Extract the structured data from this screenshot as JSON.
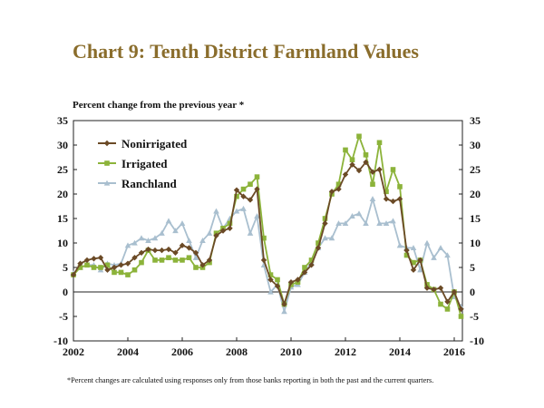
{
  "chart_data": {
    "type": "line",
    "title": "Chart 9: Tenth District Farmland Values",
    "ylabel": "Percent change from the previous year *",
    "xlabel": "",
    "xlim": [
      2002,
      2016.3
    ],
    "ylim": [
      -10,
      35
    ],
    "yticks": [
      35,
      30,
      25,
      20,
      15,
      10,
      5,
      0,
      -5,
      -10
    ],
    "xticks": [
      "2002",
      "2004",
      "2006",
      "2008",
      "2010",
      "2012",
      "2014",
      "2016"
    ],
    "legend_position": "top-left",
    "footnote": "*Percent changes are calculated using responses only from those banks reporting in both the past and the current quarters.",
    "colors": {
      "Nonirrigated": "#6b4a26",
      "Irrigated": "#8cb33a",
      "Ranchland": "#a9bfcf"
    },
    "series": [
      {
        "name": "Nonirrigated",
        "color": "#6b4a26",
        "marker": "diamond",
        "x": [
          2002.0,
          2002.25,
          2002.5,
          2002.75,
          2003.0,
          2003.25,
          2003.5,
          2003.75,
          2004.0,
          2004.25,
          2004.5,
          2004.75,
          2005.0,
          2005.25,
          2005.5,
          2005.75,
          2006.0,
          2006.25,
          2006.5,
          2006.75,
          2007.0,
          2007.25,
          2007.5,
          2007.75,
          2008.0,
          2008.25,
          2008.5,
          2008.75,
          2009.0,
          2009.25,
          2009.5,
          2009.75,
          2010.0,
          2010.25,
          2010.5,
          2010.75,
          2011.0,
          2011.25,
          2011.5,
          2011.75,
          2012.0,
          2012.25,
          2012.5,
          2012.75,
          2013.0,
          2013.25,
          2013.5,
          2013.75,
          2014.0,
          2014.25,
          2014.5,
          2014.75,
          2015.0,
          2015.25,
          2015.5,
          2015.75,
          2016.0,
          2016.25
        ],
        "values": [
          3.5,
          5.8,
          6.5,
          6.8,
          7.0,
          4.5,
          5.0,
          5.5,
          5.8,
          7.0,
          8.0,
          8.7,
          8.5,
          8.5,
          8.7,
          8.0,
          9.5,
          9.0,
          8.0,
          5.5,
          6.5,
          11.5,
          12.5,
          13.0,
          20.8,
          19.5,
          18.8,
          21.0,
          6.5,
          2.5,
          1.2,
          -2.5,
          2.0,
          2.5,
          4.0,
          5.5,
          9.0,
          14.0,
          20.5,
          21.0,
          24.0,
          26.0,
          24.8,
          26.5,
          24.5,
          25.0,
          19.0,
          18.5,
          19.0,
          8.5,
          4.5,
          6.5,
          0.8,
          0.5,
          0.8,
          -2.0,
          0.0,
          -3.5
        ]
      },
      {
        "name": "Irrigated",
        "color": "#8cb33a",
        "marker": "square",
        "x": [
          2002.0,
          2002.25,
          2002.5,
          2002.75,
          2003.0,
          2003.25,
          2003.5,
          2003.75,
          2004.0,
          2004.25,
          2004.5,
          2004.75,
          2005.0,
          2005.25,
          2005.5,
          2005.75,
          2006.0,
          2006.25,
          2006.5,
          2006.75,
          2007.0,
          2007.25,
          2007.5,
          2007.75,
          2008.0,
          2008.25,
          2008.5,
          2008.75,
          2009.0,
          2009.25,
          2009.5,
          2009.75,
          2010.0,
          2010.25,
          2010.5,
          2010.75,
          2011.0,
          2011.25,
          2011.5,
          2011.75,
          2012.0,
          2012.25,
          2012.5,
          2012.75,
          2013.0,
          2013.25,
          2013.5,
          2013.75,
          2014.0,
          2014.25,
          2014.5,
          2014.75,
          2015.0,
          2015.25,
          2015.5,
          2015.75,
          2016.0,
          2016.25
        ],
        "values": [
          3.5,
          5.0,
          5.5,
          5.0,
          5.0,
          5.5,
          4.0,
          4.0,
          3.5,
          4.5,
          6.0,
          8.5,
          6.5,
          6.5,
          7.0,
          6.5,
          6.5,
          7.0,
          5.0,
          5.0,
          6.0,
          12.0,
          13.0,
          14.0,
          19.5,
          21.0,
          22.0,
          23.5,
          11.0,
          3.5,
          2.5,
          -2.5,
          1.5,
          2.0,
          5.0,
          6.5,
          10.0,
          15.0,
          20.0,
          22.0,
          29.0,
          27.0,
          31.8,
          28.0,
          22.0,
          30.5,
          20.5,
          25.0,
          21.5,
          7.5,
          6.0,
          6.5,
          1.5,
          0.5,
          -2.5,
          -3.5,
          0.0,
          -5.0
        ]
      },
      {
        "name": "Ranchland",
        "color": "#a9bfcf",
        "marker": "triangle",
        "x": [
          2002.0,
          2002.25,
          2002.5,
          2002.75,
          2003.0,
          2003.25,
          2003.5,
          2003.75,
          2004.0,
          2004.25,
          2004.5,
          2004.75,
          2005.0,
          2005.25,
          2005.5,
          2005.75,
          2006.0,
          2006.25,
          2006.5,
          2006.75,
          2007.0,
          2007.25,
          2007.5,
          2007.75,
          2008.0,
          2008.25,
          2008.5,
          2008.75,
          2009.0,
          2009.25,
          2009.5,
          2009.75,
          2010.0,
          2010.25,
          2010.5,
          2010.75,
          2011.0,
          2011.25,
          2011.5,
          2011.75,
          2012.0,
          2012.25,
          2012.5,
          2012.75,
          2013.0,
          2013.25,
          2013.5,
          2013.75,
          2014.0,
          2014.25,
          2014.5,
          2014.75,
          2015.0,
          2015.25,
          2015.5,
          2015.75,
          2016.0,
          2016.25
        ],
        "values": [
          3.8,
          5.0,
          5.5,
          5.5,
          4.5,
          5.8,
          5.5,
          5.8,
          9.5,
          10.0,
          11.0,
          10.5,
          11.0,
          12.0,
          14.5,
          12.5,
          14.0,
          10.5,
          7.0,
          10.5,
          12.0,
          16.5,
          13.0,
          15.0,
          16.5,
          17.0,
          12.0,
          15.5,
          5.5,
          0.0,
          1.5,
          -4.0,
          1.0,
          1.5,
          4.0,
          6.0,
          9.0,
          11.0,
          11.0,
          14.0,
          14.0,
          15.5,
          16.0,
          14.0,
          19.0,
          14.0,
          14.0,
          14.5,
          9.5,
          9.0,
          9.0,
          4.5,
          10.0,
          7.0,
          9.0,
          7.5,
          -1.0,
          -3.0
        ]
      }
    ]
  }
}
